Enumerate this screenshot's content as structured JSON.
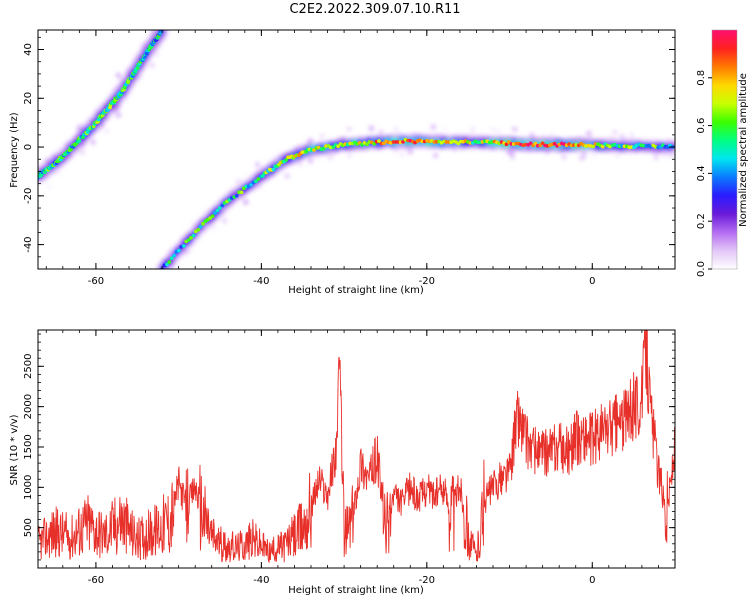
{
  "title": "C2E2.2022.309.07.10.R11",
  "colors": {
    "snr_line": "#e8302a",
    "axis": "#000000",
    "colormap": [
      "#ffffff",
      "#e3c6f7",
      "#b36cf2",
      "#6a1bd9",
      "#2a1bff",
      "#0a7bff",
      "#00e6f0",
      "#00ff80",
      "#3cff00",
      "#c8ff00",
      "#ffd800",
      "#ff7a00",
      "#ff2020",
      "#ff1070"
    ]
  },
  "chart_data": [
    {
      "type": "heatmap",
      "xlabel": "Height of straight line (km)",
      "ylabel": "Frequency (Hz)",
      "xlim": [
        -67,
        10
      ],
      "ylim": [
        -50,
        48
      ],
      "xticks": [
        -60,
        -40,
        -20,
        0
      ],
      "yticks": [
        -40,
        -20,
        0,
        20,
        40
      ],
      "xtick_labels": [
        "-60",
        "-40",
        "-20",
        "0"
      ],
      "ytick_labels": [
        "-40",
        "-20",
        "0",
        "20",
        "40"
      ],
      "colorbar": {
        "label": "Normalized spectral amplitude",
        "range": [
          0,
          1
        ],
        "ticks": [
          0.0,
          0.2,
          0.4,
          0.6,
          0.8
        ],
        "tick_labels": [
          "0.0",
          "0.2",
          "0.4",
          "0.6",
          "0.8"
        ]
      },
      "traces": [
        {
          "points": [
            [
              -67,
              -12
            ],
            [
              -64,
              -4
            ],
            [
              -60,
              10
            ],
            [
              -57,
              22
            ],
            [
              -54,
              38
            ],
            [
              -52,
              48
            ]
          ],
          "amplitude": [
            0.5,
            0.5,
            0.55,
            0.55,
            0.5,
            0.45
          ]
        },
        {
          "points": [
            [
              -52,
              -50
            ],
            [
              -48,
              -35
            ],
            [
              -44,
              -22
            ],
            [
              -40,
              -12
            ],
            [
              -37,
              -5
            ],
            [
              -34,
              -1
            ],
            [
              -30,
              1
            ],
            [
              -26,
              2
            ],
            [
              -22,
              2.5
            ],
            [
              -18,
              2
            ],
            [
              -14,
              2
            ],
            [
              -10,
              1.5
            ],
            [
              -6,
              1
            ],
            [
              -2,
              1
            ],
            [
              2,
              0.5
            ],
            [
              6,
              0.5
            ],
            [
              10,
              0
            ]
          ],
          "amplitude": [
            0.45,
            0.5,
            0.5,
            0.55,
            0.65,
            0.7,
            0.7,
            0.75,
            0.85,
            0.8,
            0.6,
            0.9,
            0.95,
            0.85,
            0.6,
            0.55,
            0.5
          ]
        }
      ]
    },
    {
      "type": "line",
      "xlabel": "Height of straight line (km)",
      "ylabel": "SNR (10 * v/v)",
      "xlim": [
        -67,
        10
      ],
      "ylim": [
        0,
        2950
      ],
      "xticks": [
        -60,
        -40,
        -20,
        0
      ],
      "yticks": [
        500,
        1000,
        1500,
        2000,
        2500
      ],
      "xtick_labels": [
        "-60",
        "-40",
        "-20",
        "0"
      ],
      "ytick_labels": [
        "500",
        "1000",
        "1500",
        "2000",
        "2500"
      ],
      "series": [
        {
          "x": [
            -67,
            -65,
            -63,
            -61,
            -59,
            -57,
            -55,
            -53,
            -51,
            -50,
            -49,
            -48,
            -47,
            -46,
            -45,
            -43,
            -41,
            -39,
            -37,
            -35,
            -34,
            -33,
            -32,
            -31,
            -30.5,
            -30,
            -29,
            -28,
            -27,
            -26,
            -25,
            -24,
            -23,
            -22,
            -21,
            -20,
            -19,
            -18,
            -17,
            -16,
            -15,
            -14,
            -13,
            -12,
            -11,
            -10,
            -9,
            -8,
            -7,
            -6,
            -5,
            -4,
            -3,
            -2,
            -1,
            0,
            1,
            2,
            3,
            4,
            5,
            6,
            6.5,
            7,
            8,
            9,
            10
          ],
          "y": [
            300,
            450,
            380,
            550,
            400,
            600,
            350,
            450,
            600,
            1050,
            750,
            1000,
            650,
            400,
            300,
            250,
            350,
            200,
            300,
            500,
            750,
            1100,
            900,
            1450,
            2450,
            400,
            600,
            1300,
            1100,
            1400,
            450,
            900,
            800,
            1000,
            850,
            1000,
            900,
            1000,
            700,
            1050,
            400,
            150,
            850,
            1000,
            1100,
            1200,
            1900,
            1600,
            1450,
            1400,
            1450,
            1500,
            1450,
            1600,
            1650,
            1600,
            1700,
            1750,
            1800,
            1850,
            2000,
            2100,
            2850,
            2000,
            1200,
            700,
            1500
          ]
        }
      ]
    }
  ]
}
